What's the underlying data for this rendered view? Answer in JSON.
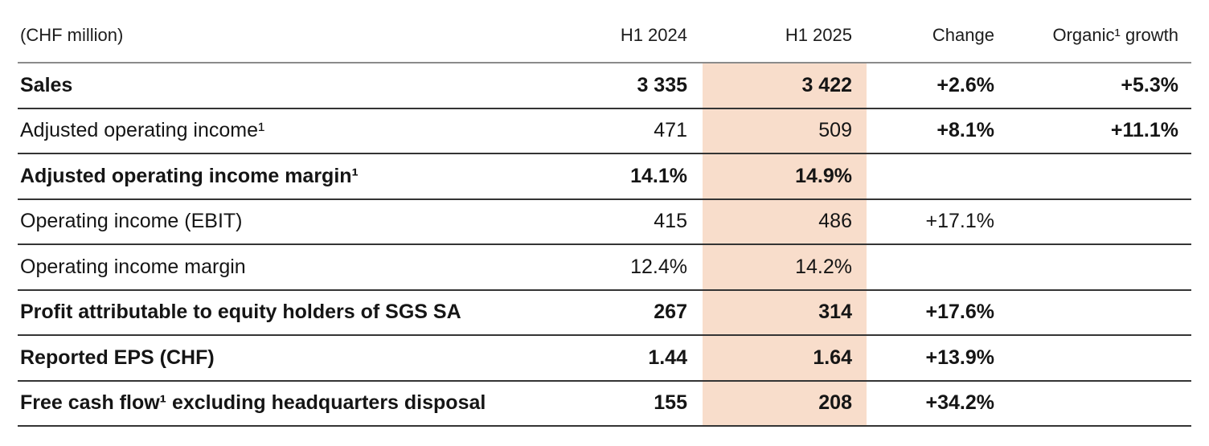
{
  "chart_data": {
    "type": "table",
    "title": "(CHF million)",
    "columns": [
      "H1 2024",
      "H1 2025",
      "Change",
      "Organic¹ growth"
    ],
    "highlight_column": "H1 2025",
    "colors": {
      "highlight_band": "#f8ddcb",
      "header_rule": "#8b8b8b",
      "row_rule": "#343434",
      "text": "#151515"
    },
    "rows": [
      {
        "label": "Sales",
        "h1_2024": "3 335",
        "h1_2025": "3 422",
        "change": "+2.6%",
        "organic": "+5.3%"
      },
      {
        "label": "Adjusted operating income¹",
        "h1_2024": "471",
        "h1_2025": "509",
        "change": "+8.1%",
        "organic": "+11.1%"
      },
      {
        "label": "Adjusted operating income margin¹",
        "h1_2024": "14.1%",
        "h1_2025": "14.9%",
        "change": "",
        "organic": ""
      },
      {
        "label": "Operating income (EBIT)",
        "h1_2024": "415",
        "h1_2025": "486",
        "change": "+17.1%",
        "organic": ""
      },
      {
        "label": "Operating income margin",
        "h1_2024": "12.4%",
        "h1_2025": "14.2%",
        "change": "",
        "organic": ""
      },
      {
        "label": "Profit attributable to equity holders of SGS SA",
        "h1_2024": "267",
        "h1_2025": "314",
        "change": "+17.6%",
        "organic": ""
      },
      {
        "label": "Reported EPS (CHF)",
        "h1_2024": "1.44",
        "h1_2025": "1.64",
        "change": "+13.9%",
        "organic": ""
      },
      {
        "label": "Free cash flow¹ excluding headquarters disposal",
        "h1_2024": "155",
        "h1_2025": "208",
        "change": "+34.2%",
        "organic": ""
      }
    ]
  }
}
